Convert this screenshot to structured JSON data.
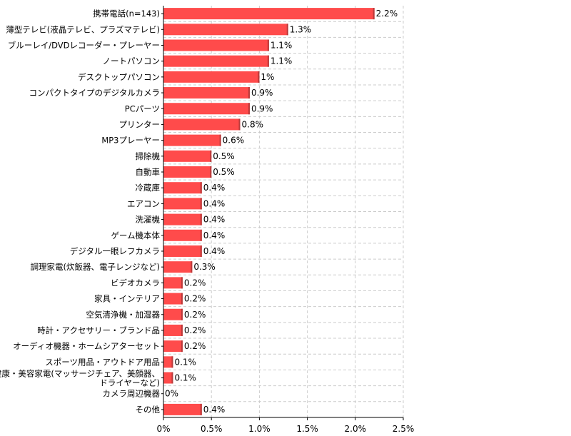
{
  "chart_data": {
    "type": "bar",
    "orientation": "horizontal",
    "categories": [
      "携帯電話(n=143)",
      "薄型テレビ(液晶テレビ、プラズマテレビ)",
      "ブルーレイ/DVDレコーダー・プレーヤー",
      "ノートパソコン",
      "デスクトップパソコン",
      "コンパクトタイプのデジタルカメラ",
      "PCパーツ",
      "プリンター",
      "MP3プレーヤー",
      "掃除機",
      "自動車",
      "冷蔵庫",
      "エアコン",
      "洗濯機",
      "ゲーム機本体",
      "デジタル一眼レフカメラ",
      "調理家電(炊飯器、電子レンジなど)",
      "ビデオカメラ",
      "家具・インテリア",
      "空気清浄機・加湿器",
      "時計・アクセサリー・ブランド品",
      "オーディオ機器・ホームシアターセット",
      "スポーツ用品・アウトドア用品",
      "健康・美容家電(マッサージチェア、美顔器、ドライヤーなど)",
      "カメラ周辺機器",
      "その他"
    ],
    "values": [
      2.2,
      1.3,
      1.1,
      1.1,
      1.0,
      0.9,
      0.9,
      0.8,
      0.6,
      0.5,
      0.5,
      0.4,
      0.4,
      0.4,
      0.4,
      0.4,
      0.3,
      0.2,
      0.2,
      0.2,
      0.2,
      0.2,
      0.1,
      0.1,
      0.0,
      0.4
    ],
    "value_labels": [
      "2.2%",
      "1.3%",
      "1.1%",
      "1.1%",
      "1%",
      "0.9%",
      "0.9%",
      "0.8%",
      "0.6%",
      "0.5%",
      "0.5%",
      "0.4%",
      "0.4%",
      "0.4%",
      "0.4%",
      "0.4%",
      "0.3%",
      "0.2%",
      "0.2%",
      "0.2%",
      "0.2%",
      "0.2%",
      "0.1%",
      "0.1%",
      "0%",
      "0.4%"
    ],
    "xlim": [
      0,
      2.5
    ],
    "x_ticks": [
      0,
      0.5,
      1.0,
      1.5,
      2.0,
      2.5
    ],
    "x_tick_labels": [
      "0%",
      "0.5%",
      "1.0%",
      "1.5%",
      "2.0%",
      "2.5%"
    ],
    "title": "",
    "xlabel": "",
    "ylabel": "",
    "grid": true,
    "legend": "none",
    "bar_color": "#ff4b4b",
    "bar_shadow_color": "#b93a3a",
    "grid_color": "#cccccc"
  }
}
